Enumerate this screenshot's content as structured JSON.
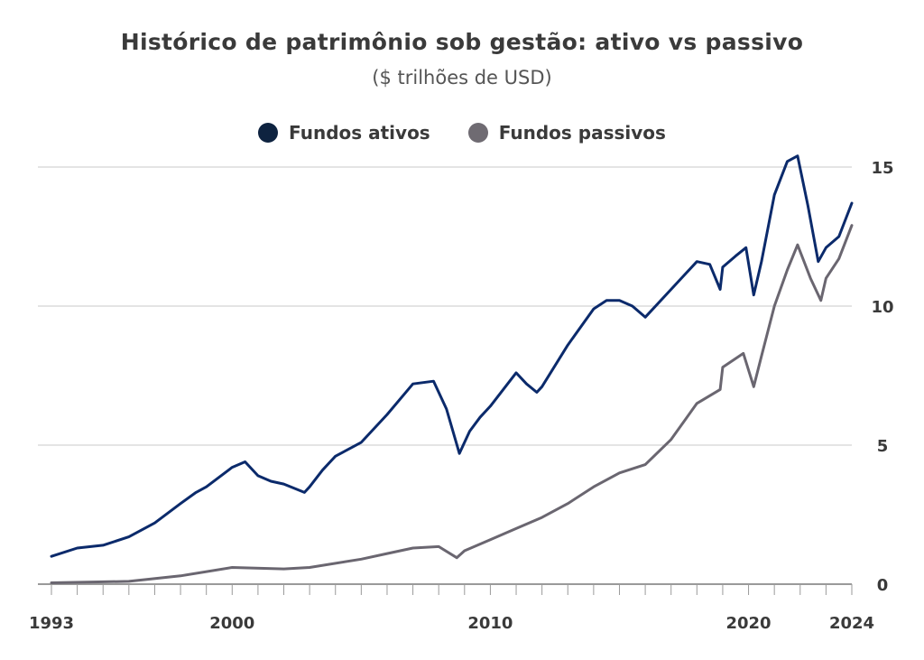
{
  "chart_data": {
    "type": "line",
    "title": "Histórico de patrimônio sob gestão: ativo vs passivo",
    "subtitle": "($ trilhões de USD)",
    "legend_position": "top",
    "grid": true,
    "xlim": [
      1993,
      2024
    ],
    "ylim": [
      0,
      15
    ],
    "x_ticks": [
      1993,
      2000,
      2010,
      2020,
      2024
    ],
    "y_ticks": [
      0,
      5,
      10,
      15
    ],
    "y_axis_side": "right",
    "series": [
      {
        "name": "Fundos ativos",
        "color": "#0b2a6b",
        "x": [
          1993,
          1994,
          1995,
          1996,
          1997,
          1998,
          1998.6,
          1999,
          2000,
          2000.5,
          2001,
          2001.5,
          2002,
          2002.8,
          2003,
          2003.5,
          2004,
          2005,
          2006,
          2007,
          2007.8,
          2008.3,
          2008.8,
          2009.2,
          2009.6,
          2010,
          2010.5,
          2011,
          2011.4,
          2011.8,
          2012,
          2013,
          2014,
          2014.5,
          2015,
          2015.5,
          2016,
          2017,
          2018,
          2018.5,
          2018.9,
          2019,
          2019.5,
          2019.9,
          2020.2,
          2020.5,
          2021,
          2021.5,
          2021.9,
          2022.3,
          2022.7,
          2023,
          2023.5,
          2024
        ],
        "values": [
          1.0,
          1.3,
          1.4,
          1.7,
          2.2,
          2.9,
          3.3,
          3.5,
          4.2,
          4.4,
          3.9,
          3.7,
          3.6,
          3.3,
          3.5,
          4.1,
          4.6,
          5.1,
          6.1,
          7.2,
          7.3,
          6.3,
          4.7,
          5.5,
          6.0,
          6.4,
          7.0,
          7.6,
          7.2,
          6.9,
          7.1,
          8.6,
          9.9,
          10.2,
          10.2,
          10.0,
          9.6,
          10.6,
          11.6,
          11.5,
          10.6,
          11.4,
          11.8,
          12.1,
          10.4,
          11.6,
          14.0,
          15.2,
          15.4,
          13.6,
          11.6,
          12.1,
          12.5,
          13.7
        ]
      },
      {
        "name": "Fundos passivos",
        "color": "#6a6670",
        "x": [
          1993,
          1996,
          1998,
          2000,
          2002,
          2003,
          2005,
          2006,
          2007,
          2008,
          2008.7,
          2009,
          2010,
          2011,
          2012,
          2013,
          2014,
          2015,
          2016,
          2017,
          2018,
          2018.9,
          2019,
          2019.8,
          2020.2,
          2020.5,
          2021,
          2021.5,
          2021.9,
          2022.4,
          2022.8,
          2023,
          2023.5,
          2024
        ],
        "values": [
          0.05,
          0.1,
          0.3,
          0.6,
          0.55,
          0.6,
          0.9,
          1.1,
          1.3,
          1.35,
          0.95,
          1.2,
          1.6,
          2.0,
          2.4,
          2.9,
          3.5,
          4.0,
          4.3,
          5.2,
          6.5,
          7.0,
          7.8,
          8.3,
          7.1,
          8.2,
          10.0,
          11.3,
          12.2,
          11.0,
          10.2,
          11.0,
          11.7,
          12.9
        ]
      }
    ]
  },
  "legend": {
    "active_label": "Fundos ativos",
    "passive_label": "Fundos passivos"
  }
}
